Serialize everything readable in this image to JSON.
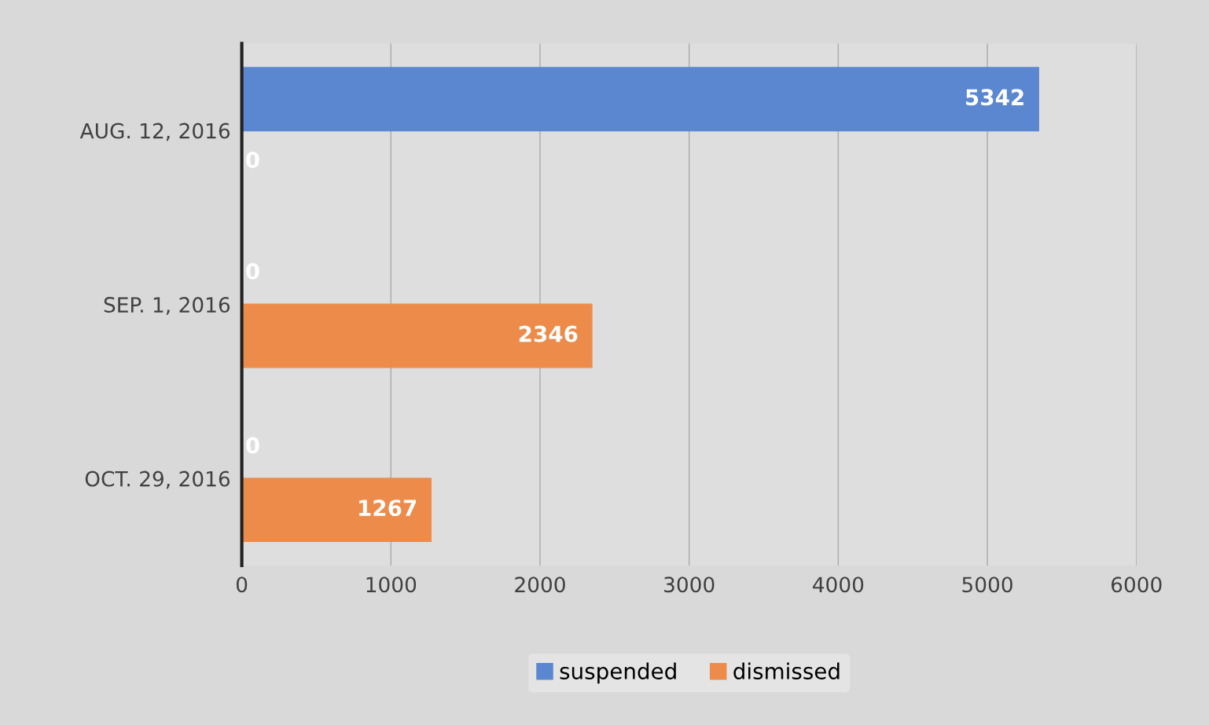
{
  "chart_data": {
    "type": "bar",
    "orientation": "horizontal",
    "categories": [
      "AUG. 12, 2016",
      "SEP. 1, 2016",
      "OCT. 29, 2016"
    ],
    "series": [
      {
        "name": "suspended",
        "color": "#5b87d1",
        "values": [
          5342,
          0,
          0
        ]
      },
      {
        "name": "dismissed",
        "color": "#ed8c4a",
        "values": [
          0,
          2346,
          1267
        ]
      }
    ],
    "xlim": [
      0,
      6000
    ],
    "xticks": [
      0,
      1000,
      2000,
      3000,
      4000,
      5000,
      6000
    ],
    "grid": "x",
    "legend": "bottom",
    "data_labels": true
  }
}
